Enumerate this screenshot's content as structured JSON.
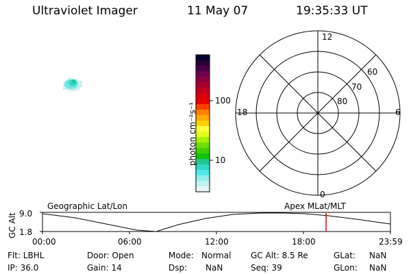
{
  "header": {
    "instrument": "Ultraviolet Imager",
    "date": "11 May 07",
    "time": "19:35:33 UT"
  },
  "colorbar": {
    "unit_label": "photon cm⁻²s⁻¹",
    "tick_labels": [
      "100",
      "10"
    ],
    "colors": [
      "#000030",
      "#2a0038",
      "#4a0044",
      "#6e0052",
      "#8c0040",
      "#a8002a",
      "#c00020",
      "#d8000c",
      "#e80000",
      "#ff4000",
      "#ff8000",
      "#ffa800",
      "#ffd000",
      "#ffff40",
      "#e0ff20",
      "#a8f000",
      "#70e000",
      "#40d000",
      "#10c400",
      "#20c890",
      "#30d8c8",
      "#50e8e8",
      "#90eeee",
      "#c0f2f2",
      "#e4f6f6"
    ]
  },
  "polar": {
    "mlt_labels": {
      "top": "12",
      "right": "6",
      "bottom": "0",
      "left": "18"
    },
    "lat_labels": [
      "60",
      "70",
      "80"
    ]
  },
  "timeline": {
    "y_axis_title": "GC Alt",
    "y_ticks": [
      "9.0",
      "1.8"
    ],
    "left_label": "Geographic Lat/Lon",
    "right_label": "Apex  MLat/MLT",
    "x_ticks": [
      "00:00",
      "06:00",
      "12:00",
      "18:00",
      "23:59"
    ],
    "marker_color": "#e00000",
    "line_color": "#000000"
  },
  "info": {
    "flt": "Flt: LBHL",
    "ip": "IP: 36.0",
    "door": "Door: Open",
    "gain": "Gain: 14",
    "mode_label": "Mode:",
    "mode_value": "Normal",
    "dsp_label": "Dsp:",
    "dsp_value": "NaN",
    "gcalt": "GC Alt: 8.5 Re",
    "seq": "Seq: 39",
    "glat_label": "GLat:",
    "glat_value": "NaN",
    "glon_label": "GLon:",
    "glon_value": "NaN"
  }
}
